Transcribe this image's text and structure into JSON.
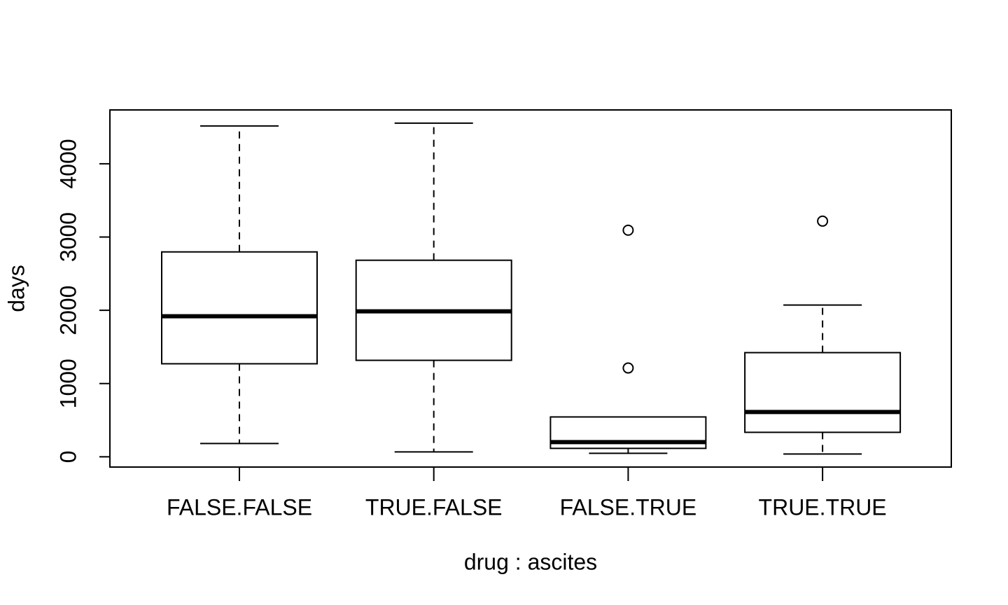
{
  "chart_data": {
    "type": "box",
    "xlabel": "drug : ascites",
    "ylabel": "days",
    "categories": [
      "FALSE.FALSE",
      "TRUE.FALSE",
      "FALSE.TRUE",
      "TRUE.TRUE"
    ],
    "boxes": [
      {
        "whislo": 181,
        "q1": 1270,
        "med": 1919,
        "q3": 2797,
        "whishi": 4516,
        "outliers": []
      },
      {
        "whislo": 67,
        "q1": 1317,
        "med": 1986,
        "q3": 2683,
        "whishi": 4554,
        "outliers": []
      },
      {
        "whislo": 48,
        "q1": 115,
        "med": 200,
        "q3": 544,
        "whishi": 544,
        "outliers": [
          3093,
          1212
        ]
      },
      {
        "whislo": 38,
        "q1": 334,
        "med": 611,
        "q3": 1422,
        "whishi": 2072,
        "outliers": [
          3217
        ]
      }
    ],
    "color": "#000000",
    "ylim": [
      -140,
      4735
    ],
    "yticks": [
      0,
      1000,
      2000,
      3000,
      4000
    ]
  }
}
